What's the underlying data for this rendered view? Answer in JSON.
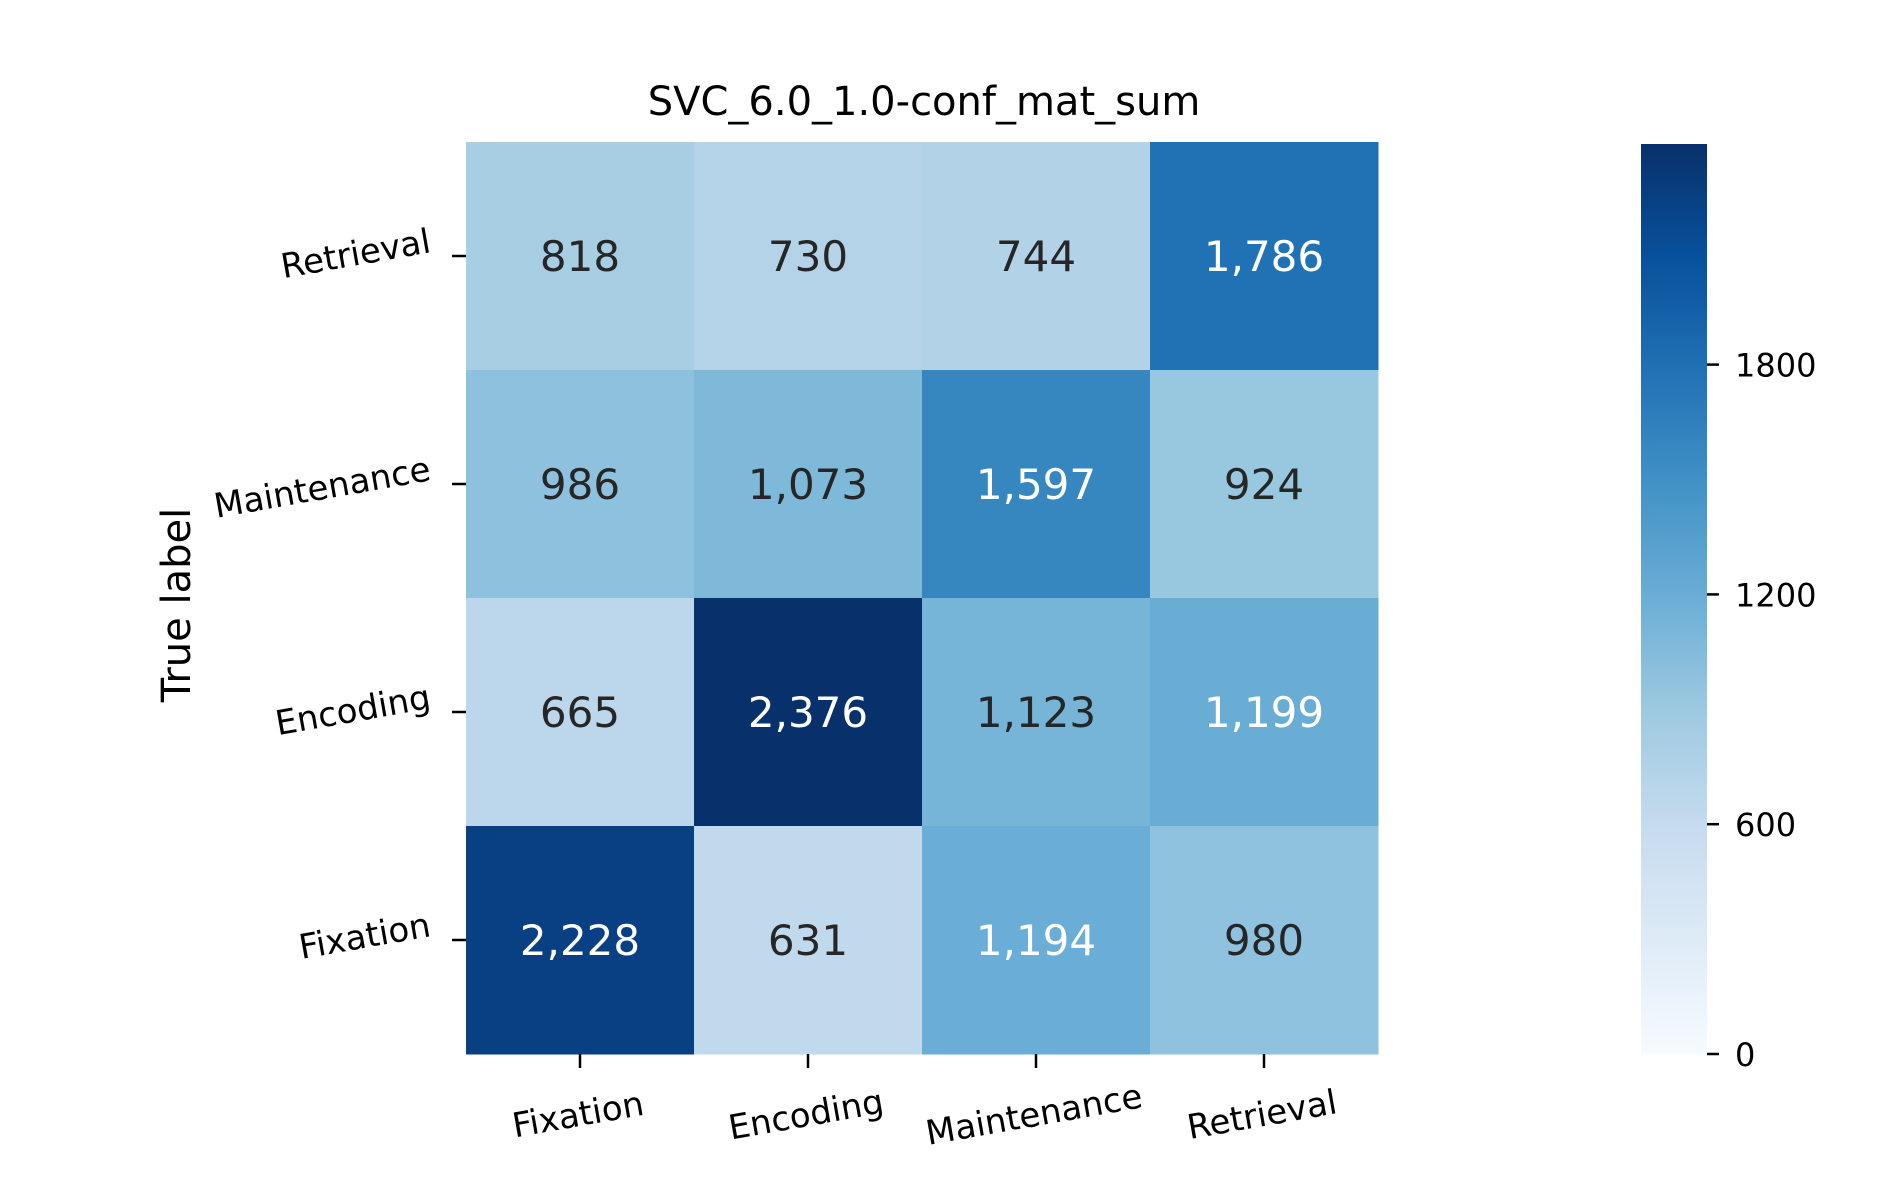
{
  "chart_data": {
    "type": "heatmap",
    "title": "SVC_6.0_1.0-conf_mat_sum",
    "ylabel": "True label",
    "xlabel": "",
    "x_categories": [
      "Fixation",
      "Encoding",
      "Maintenance",
      "Retrieval"
    ],
    "y_categories_top_to_bottom": [
      "Retrieval",
      "Maintenance",
      "Encoding",
      "Fixation"
    ],
    "values": [
      [
        818,
        730,
        744,
        1786
      ],
      [
        986,
        1073,
        1597,
        924
      ],
      [
        665,
        2376,
        1123,
        1199
      ],
      [
        2228,
        631,
        1194,
        980
      ]
    ],
    "cell_labels": [
      [
        "818",
        "730",
        "744",
        "1,786"
      ],
      [
        "986",
        "1,073",
        "1,597",
        "924"
      ],
      [
        "665",
        "2,376",
        "1,123",
        "1,199"
      ],
      [
        "2,228",
        "631",
        "1,194",
        "980"
      ]
    ],
    "colormap": "Blues",
    "colorbar": {
      "range": [
        0,
        2376
      ],
      "ticks": [
        0,
        600,
        1200,
        1800
      ],
      "tick_labels": [
        "0",
        "600",
        "1200",
        "1800"
      ]
    },
    "colors": {
      "light_text": "#ffffff",
      "dark_text": "#262626",
      "axis": "#000000"
    }
  }
}
